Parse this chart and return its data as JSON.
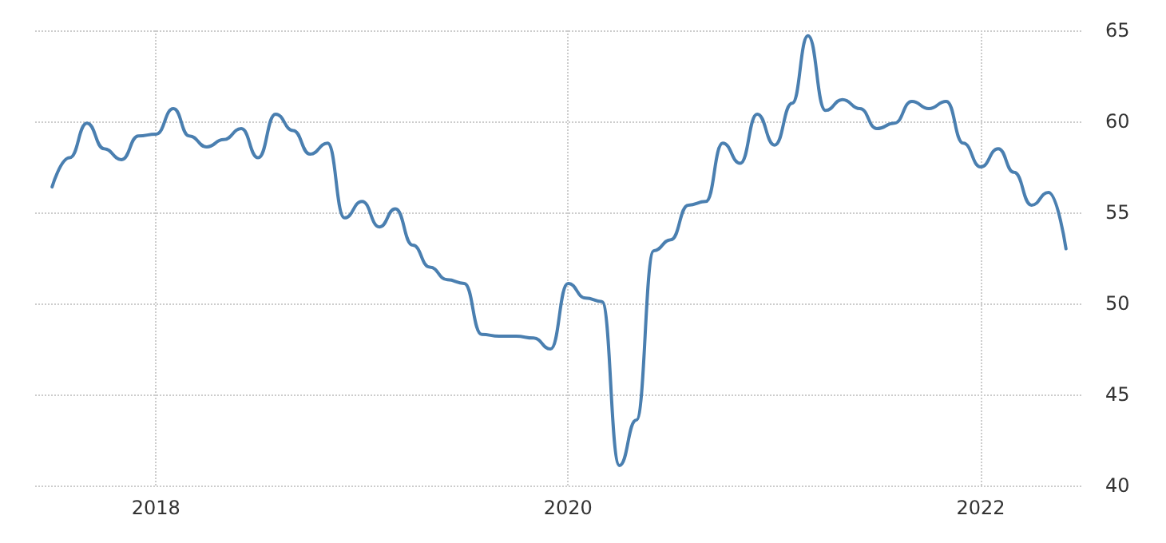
{
  "chart_data": {
    "type": "line",
    "x": [
      "2017-07",
      "2017-08",
      "2017-09",
      "2017-10",
      "2017-11",
      "2017-12",
      "2018-01",
      "2018-02",
      "2018-03",
      "2018-04",
      "2018-05",
      "2018-06",
      "2018-07",
      "2018-08",
      "2018-09",
      "2018-10",
      "2018-11",
      "2018-12",
      "2019-01",
      "2019-02",
      "2019-03",
      "2019-04",
      "2019-05",
      "2019-06",
      "2019-07",
      "2019-08",
      "2019-09",
      "2019-10",
      "2019-11",
      "2019-12",
      "2020-01",
      "2020-02",
      "2020-03",
      "2020-04",
      "2020-05",
      "2020-06",
      "2020-07",
      "2020-08",
      "2020-09",
      "2020-10",
      "2020-11",
      "2020-12",
      "2021-01",
      "2021-02",
      "2021-03",
      "2021-04",
      "2021-05",
      "2021-06",
      "2021-07",
      "2021-08",
      "2021-09",
      "2021-10",
      "2021-11",
      "2021-12",
      "2022-01",
      "2022-02",
      "2022-03",
      "2022-04",
      "2022-05",
      "2022-06"
    ],
    "series": [
      {
        "color": "#4a7fb0",
        "values": [
          56.4,
          58.0,
          59.9,
          58.5,
          57.9,
          59.2,
          59.3,
          60.7,
          59.2,
          58.6,
          59.0,
          59.6,
          58.0,
          60.4,
          59.5,
          58.2,
          58.8,
          54.7,
          55.6,
          54.2,
          55.2,
          53.2,
          52.0,
          51.3,
          51.1,
          48.3,
          48.2,
          48.2,
          48.1,
          47.5,
          51.1,
          50.3,
          50.1,
          41.1,
          43.6,
          52.9,
          53.5,
          55.4,
          55.6,
          58.8,
          57.7,
          60.4,
          58.7,
          61.0,
          64.7,
          60.6,
          61.2,
          60.7,
          59.6,
          59.9,
          61.1,
          60.7,
          61.1,
          58.8,
          57.5,
          58.5,
          57.2,
          55.4,
          56.1,
          53.0
        ]
      }
    ],
    "xlim": [
      "2017-06",
      "2022-07"
    ],
    "xticks": [
      "2018",
      "2020",
      "2022"
    ],
    "ylim": [
      40,
      65
    ],
    "yticks": [
      40,
      45,
      50,
      55,
      60,
      65
    ],
    "grid": true,
    "marker": "none",
    "line_style": "solid"
  }
}
